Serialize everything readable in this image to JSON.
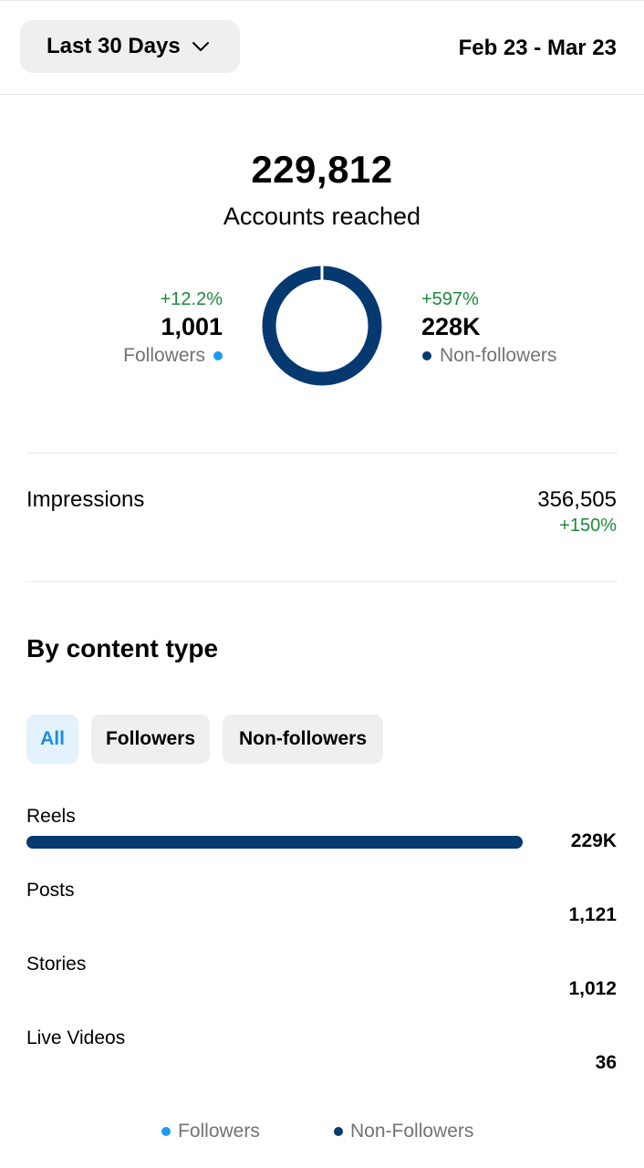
{
  "header": {
    "range_label": "Last 30 Days",
    "date_range": "Feb 23 - Mar 23"
  },
  "reach": {
    "total": "229,812",
    "label": "Accounts reached",
    "followers": {
      "change": "+12.2%",
      "value": "1,001",
      "label": "Followers"
    },
    "non_followers": {
      "change": "+597%",
      "value": "228K",
      "label": "Non-followers"
    },
    "followers_share": 0.0044
  },
  "impressions": {
    "label": "Impressions",
    "value": "356,505",
    "change": "+150%"
  },
  "content_type": {
    "title": "By content type",
    "filters": [
      "All",
      "Followers",
      "Non-followers"
    ],
    "selected_filter": "All",
    "items": [
      {
        "label": "Reels",
        "value": "229K",
        "fill": 1.0
      },
      {
        "label": "Posts",
        "value": "1,121",
        "fill": 0.0
      },
      {
        "label": "Stories",
        "value": "1,012",
        "fill": 0.0
      },
      {
        "label": "Live Videos",
        "value": "36",
        "fill": 0.0
      }
    ]
  },
  "legend": {
    "followers": "Followers",
    "non_followers": "Non-Followers"
  },
  "colors": {
    "followers": "#1d9bf0",
    "non_followers": "#063970",
    "positive": "#1f8a3c"
  },
  "icons": {
    "dropdown": "chevron-down-icon"
  }
}
